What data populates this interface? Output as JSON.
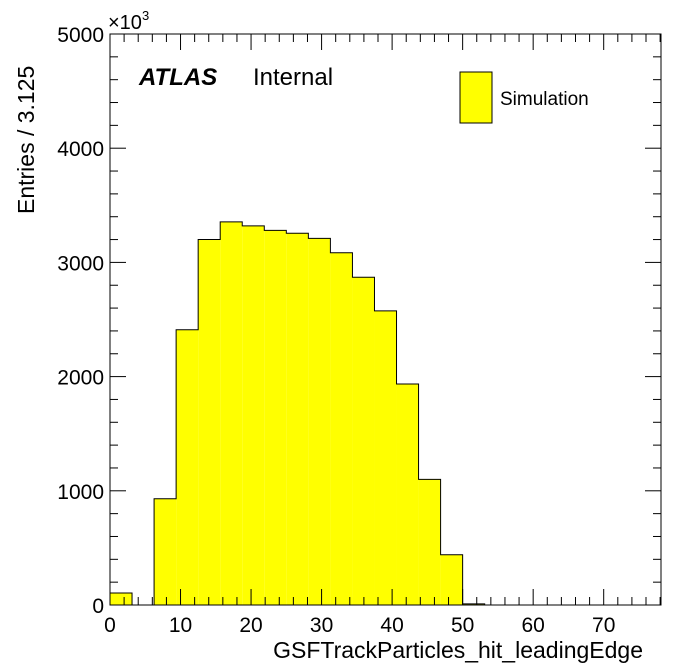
{
  "chart_data": {
    "type": "bar",
    "histogram": true,
    "bin_width": 3.125,
    "x": {
      "label": "GSFTrackParticles_hit_leadingEdge",
      "range": [
        0,
        78.125
      ],
      "ticks": [
        0,
        10,
        20,
        30,
        40,
        50,
        60,
        70
      ],
      "tick_labels": [
        "0",
        "10",
        "20",
        "30",
        "40",
        "50",
        "60",
        "70"
      ]
    },
    "y": {
      "label": "Entries / 3.125",
      "range": [
        0,
        5000
      ],
      "ticks": [
        0,
        1000,
        2000,
        3000,
        4000,
        5000
      ],
      "tick_labels": [
        "0",
        "1000",
        "2000",
        "3000",
        "4000",
        "5000"
      ],
      "multiplier_base": "×10",
      "multiplier_exp": "3"
    },
    "series": [
      {
        "name": "Simulation",
        "color": "#ffff00",
        "edges": [
          0,
          3.125,
          6.25,
          9.375,
          12.5,
          15.625,
          18.75,
          21.875,
          25,
          28.125,
          31.25,
          34.375,
          37.5,
          40.625,
          43.75,
          46.875,
          50,
          53.125,
          56.25,
          59.375,
          62.5,
          65.625,
          68.75,
          71.875,
          75,
          78.125
        ],
        "values": [
          105,
          0,
          930,
          2410,
          3200,
          3355,
          3320,
          3280,
          3255,
          3210,
          3085,
          2870,
          2575,
          1935,
          1100,
          440,
          10,
          0,
          0,
          0,
          0,
          0,
          0,
          0,
          0
        ]
      }
    ],
    "label_bold": "ATLAS",
    "label_status": "Internal",
    "legend": {
      "position": "top-right",
      "entries": [
        "Simulation"
      ]
    },
    "grid": false
  }
}
